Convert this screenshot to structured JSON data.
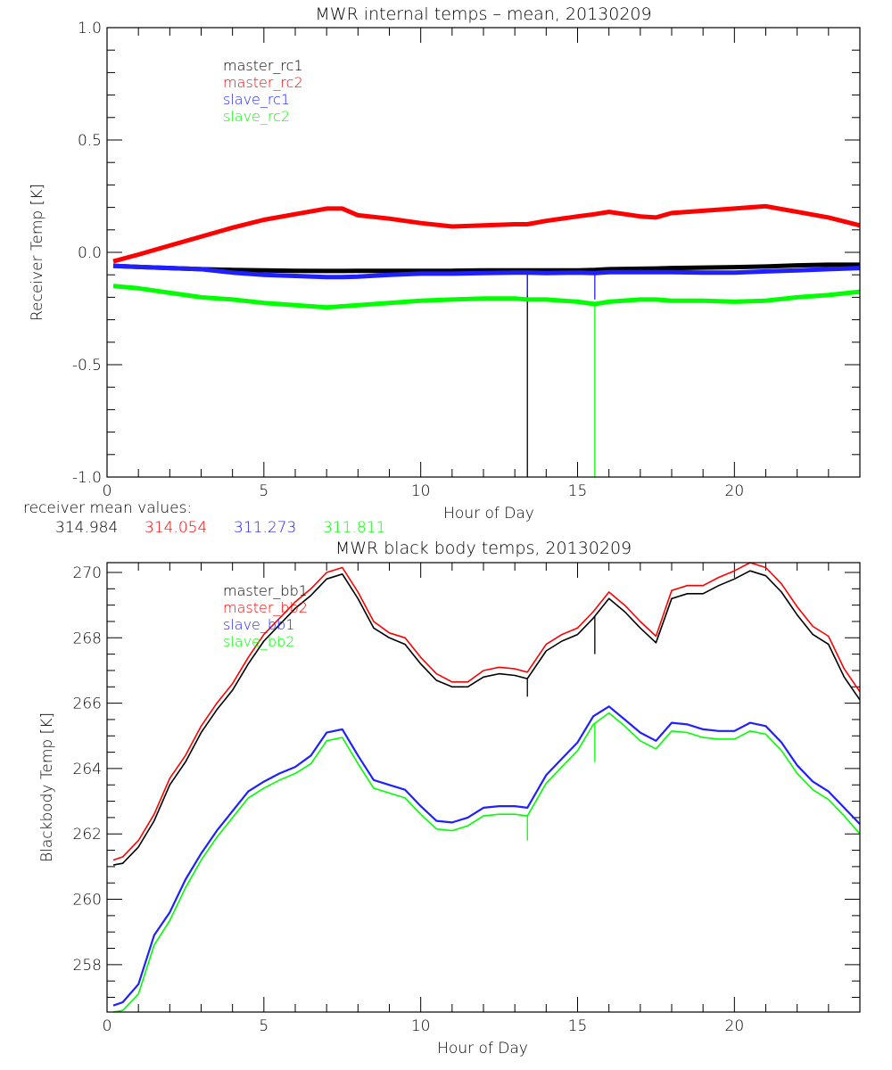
{
  "colors": {
    "master_1": "#000000",
    "master_2": "#ff0000",
    "slave_1": "#2020ff",
    "slave_2": "#00ff00",
    "axis": "#000000"
  },
  "chart_data": [
    {
      "type": "line",
      "title": "MWR internal temps – mean, 20130209",
      "xlabel": "Hour of Day",
      "ylabel": "Receiver Temp [K]",
      "xlim": [
        0,
        24
      ],
      "ylim": [
        -1.0,
        1.0
      ],
      "xticks": [
        "0",
        "5",
        "10",
        "15",
        "20"
      ],
      "xtick_values": [
        0,
        5,
        10,
        15,
        20
      ],
      "yticks": [
        "-1.0",
        "-0.5",
        "0.0",
        "0.5",
        "1.0"
      ],
      "ytick_values": [
        -1.0,
        -0.5,
        0.0,
        0.5,
        1.0
      ],
      "grid": false,
      "legend_position": "top-left",
      "x": [
        0.2,
        1,
        2,
        3,
        4,
        5,
        6,
        7,
        7.5,
        8,
        9,
        10,
        11,
        12,
        13,
        13.4,
        14,
        15,
        15.55,
        16,
        17,
        17.5,
        18,
        19,
        20,
        21,
        22,
        23,
        24
      ],
      "series": [
        {
          "name": "master_rc1",
          "color_key": "master_1",
          "values": [
            -0.06,
            -0.065,
            -0.07,
            -0.075,
            -0.078,
            -0.08,
            -0.082,
            -0.083,
            -0.083,
            -0.082,
            -0.082,
            -0.082,
            -0.082,
            -0.08,
            -0.08,
            -0.08,
            -0.08,
            -0.08,
            -0.078,
            -0.075,
            -0.073,
            -0.072,
            -0.07,
            -0.068,
            -0.066,
            -0.063,
            -0.058,
            -0.055,
            -0.055
          ],
          "spikes": [
            {
              "x": 13.4,
              "to": -1.0
            }
          ]
        },
        {
          "name": "master_rc2",
          "color_key": "master_2",
          "values": [
            -0.04,
            -0.01,
            0.03,
            0.07,
            0.11,
            0.145,
            0.17,
            0.195,
            0.195,
            0.165,
            0.15,
            0.13,
            0.115,
            0.12,
            0.125,
            0.125,
            0.14,
            0.16,
            0.17,
            0.18,
            0.16,
            0.155,
            0.175,
            0.185,
            0.195,
            0.205,
            0.18,
            0.155,
            0.12
          ]
        },
        {
          "name": "slave_rc1",
          "color_key": "slave_1",
          "values": [
            -0.06,
            -0.065,
            -0.07,
            -0.075,
            -0.09,
            -0.1,
            -0.105,
            -0.11,
            -0.11,
            -0.108,
            -0.1,
            -0.095,
            -0.095,
            -0.092,
            -0.09,
            -0.09,
            -0.092,
            -0.09,
            -0.092,
            -0.088,
            -0.088,
            -0.088,
            -0.088,
            -0.09,
            -0.09,
            -0.085,
            -0.08,
            -0.075,
            -0.07
          ],
          "spikes": [
            {
              "x": 13.4,
              "to": -0.19
            },
            {
              "x": 15.55,
              "to": -0.21
            }
          ]
        },
        {
          "name": "slave_rc2",
          "color_key": "slave_2",
          "values": [
            -0.15,
            -0.16,
            -0.18,
            -0.2,
            -0.21,
            -0.225,
            -0.235,
            -0.245,
            -0.24,
            -0.235,
            -0.225,
            -0.215,
            -0.21,
            -0.205,
            -0.205,
            -0.21,
            -0.21,
            -0.22,
            -0.23,
            -0.22,
            -0.21,
            -0.21,
            -0.215,
            -0.215,
            -0.22,
            -0.215,
            -0.2,
            -0.19,
            -0.175
          ],
          "spikes": [
            {
              "x": 15.55,
              "to": -1.0
            }
          ]
        }
      ],
      "annotation": {
        "label": "receiver mean values:",
        "values": [
          {
            "text": "314.984",
            "color_key": "master_1"
          },
          {
            "text": "314.054",
            "color_key": "master_2"
          },
          {
            "text": "311.273",
            "color_key": "slave_1"
          },
          {
            "text": "311.811",
            "color_key": "slave_2"
          }
        ]
      }
    },
    {
      "type": "line",
      "title": "MWR black body temps, 20130209",
      "xlabel": "Hour of Day",
      "ylabel": "Blackbody Temp [K]",
      "xlim": [
        0,
        24
      ],
      "ylim": [
        256.55,
        270.3
      ],
      "xticks": [
        "0",
        "5",
        "10",
        "15",
        "20"
      ],
      "xtick_values": [
        0,
        5,
        10,
        15,
        20
      ],
      "yticks": [
        "258",
        "260",
        "262",
        "264",
        "266",
        "268",
        "270"
      ],
      "ytick_values": [
        258,
        260,
        262,
        264,
        266,
        268,
        270
      ],
      "grid": false,
      "legend_position": "top-left",
      "x": [
        0.2,
        0.5,
        1,
        1.5,
        2,
        2.5,
        3,
        3.5,
        4,
        4.5,
        5,
        5.5,
        6,
        6.5,
        7,
        7.5,
        8,
        8.5,
        9,
        9.5,
        10,
        10.5,
        11,
        11.5,
        12,
        12.5,
        13,
        13.4,
        14,
        14.5,
        15,
        15.5,
        16,
        16.5,
        17,
        17.5,
        18,
        18.5,
        19,
        19.5,
        20,
        20.5,
        21,
        21.5,
        22,
        22.5,
        23,
        23.5,
        24
      ],
      "series": [
        {
          "name": "master_bb1",
          "color_key": "master_1",
          "values": [
            261.05,
            261.1,
            261.6,
            262.4,
            263.5,
            264.2,
            265.1,
            265.8,
            266.4,
            267.2,
            267.9,
            268.4,
            268.9,
            269.3,
            269.8,
            269.95,
            269.2,
            268.3,
            268.0,
            267.8,
            267.2,
            266.7,
            266.5,
            266.5,
            266.8,
            266.9,
            266.85,
            266.75,
            267.6,
            267.9,
            268.1,
            268.6,
            269.2,
            268.8,
            268.3,
            267.85,
            269.2,
            269.35,
            269.35,
            269.6,
            269.8,
            270.05,
            269.9,
            269.4,
            268.7,
            268.1,
            267.8,
            266.8,
            266.1
          ],
          "spikes": [
            {
              "x": 13.4,
              "to": 266.2
            },
            {
              "x": 15.55,
              "to": 267.5
            }
          ]
        },
        {
          "name": "master_bb2",
          "color_key": "master_2",
          "values": [
            261.2,
            261.3,
            261.8,
            262.6,
            263.7,
            264.4,
            265.3,
            266.0,
            266.6,
            267.4,
            268.1,
            268.6,
            269.1,
            269.5,
            270.0,
            270.15,
            269.4,
            268.5,
            268.15,
            268.0,
            267.4,
            266.9,
            266.65,
            266.65,
            267.0,
            267.1,
            267.05,
            266.95,
            267.8,
            268.1,
            268.3,
            268.8,
            269.4,
            269.0,
            268.5,
            268.05,
            269.45,
            269.6,
            269.6,
            269.85,
            270.05,
            270.3,
            270.15,
            269.65,
            268.95,
            268.35,
            268.05,
            267.05,
            266.35
          ]
        },
        {
          "name": "slave_bb1",
          "color_key": "slave_1",
          "values": [
            256.75,
            256.85,
            257.4,
            258.9,
            259.6,
            260.6,
            261.4,
            262.1,
            262.7,
            263.3,
            263.6,
            263.85,
            264.05,
            264.4,
            265.1,
            265.2,
            264.4,
            263.65,
            263.5,
            263.35,
            262.85,
            262.4,
            262.35,
            262.5,
            262.8,
            262.85,
            262.85,
            262.8,
            263.8,
            264.3,
            264.8,
            265.6,
            265.9,
            265.5,
            265.1,
            264.85,
            265.4,
            265.35,
            265.2,
            265.15,
            265.15,
            265.4,
            265.3,
            264.8,
            264.1,
            263.6,
            263.3,
            262.8,
            262.3
          ]
        },
        {
          "name": "slave_bb2",
          "color_key": "slave_2",
          "values": [
            256.55,
            256.6,
            257.1,
            258.6,
            259.35,
            260.35,
            261.2,
            261.9,
            262.5,
            263.1,
            263.4,
            263.65,
            263.85,
            264.15,
            264.85,
            264.95,
            264.15,
            263.4,
            263.25,
            263.1,
            262.6,
            262.15,
            262.1,
            262.25,
            262.55,
            262.6,
            262.6,
            262.55,
            263.55,
            264.05,
            264.55,
            265.35,
            265.7,
            265.3,
            264.85,
            264.6,
            265.15,
            265.1,
            264.95,
            264.9,
            264.9,
            265.15,
            265.05,
            264.55,
            263.85,
            263.35,
            263.05,
            262.55,
            262.0
          ],
          "spikes": [
            {
              "x": 13.4,
              "to": 261.8
            },
            {
              "x": 15.55,
              "to": 264.2
            }
          ]
        }
      ]
    }
  ]
}
